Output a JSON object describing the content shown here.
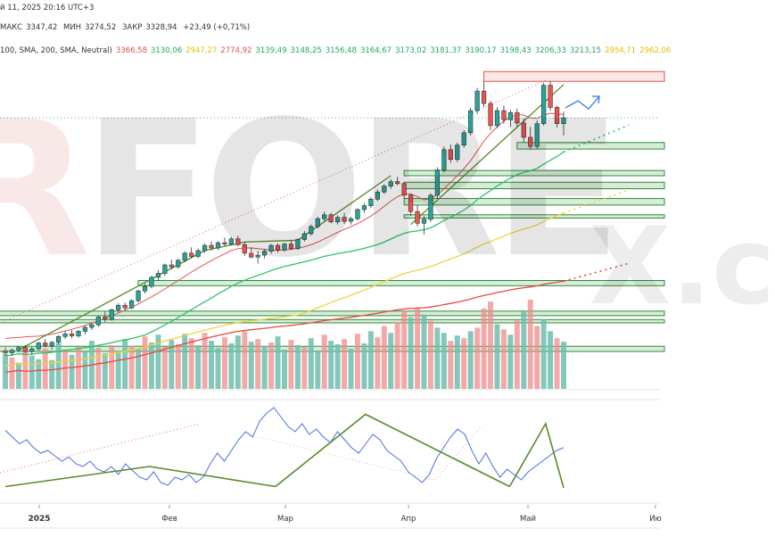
{
  "header": {
    "date_line": "й 11, 2025 20:16 UTC+3",
    "ohlc": {
      "high_label": "МАКС",
      "high": "3347,42",
      "low_label": "МИН",
      "low": "3274,52",
      "close_label": "ЗАКР",
      "close": "3328,94",
      "change": "+23,49 (+0,71%)"
    },
    "ma_label": "100, SMA, 200, SMA, Neutral)",
    "ma_values": [
      {
        "v": "3366,58",
        "color": "#d9534f"
      },
      {
        "v": "3130,06",
        "color": "#22a861"
      },
      {
        "v": "2947,27",
        "color": "#e0c000"
      },
      {
        "v": "2774,92",
        "color": "#d9534f"
      },
      {
        "v": "3139,49",
        "color": "#22a861"
      },
      {
        "v": "3148,25",
        "color": "#22a861"
      },
      {
        "v": "3156,48",
        "color": "#22a861"
      },
      {
        "v": "3164,67",
        "color": "#22a861"
      },
      {
        "v": "3173,02",
        "color": "#22a861"
      },
      {
        "v": "3181,37",
        "color": "#22a861"
      },
      {
        "v": "3190,17",
        "color": "#22a861"
      },
      {
        "v": "3198,43",
        "color": "#22a861"
      },
      {
        "v": "3206,33",
        "color": "#22a861"
      },
      {
        "v": "3213,15",
        "color": "#22a861"
      },
      {
        "v": "2954,71",
        "color": "#e0c000"
      },
      {
        "v": "2962,06",
        "color": "#e0c000"
      }
    ]
  },
  "watermark": {
    "brand_text": "RFORE",
    "tail_text": "X.c"
  },
  "chart_data": {
    "type": "candlestick",
    "x_ticks": [
      "2025",
      "Фев",
      "Мар",
      "Апр",
      "Май",
      "Ию"
    ],
    "ylim": [
      2580,
      3520
    ],
    "candles": [
      [
        2612,
        2622,
        2598,
        2606
      ],
      [
        2606,
        2618,
        2596,
        2614
      ],
      [
        2614,
        2628,
        2608,
        2622
      ],
      [
        2622,
        2630,
        2606,
        2610
      ],
      [
        2610,
        2624,
        2600,
        2618
      ],
      [
        2618,
        2640,
        2612,
        2636
      ],
      [
        2636,
        2648,
        2622,
        2628
      ],
      [
        2628,
        2642,
        2616,
        2638
      ],
      [
        2638,
        2660,
        2632,
        2656
      ],
      [
        2656,
        2672,
        2648,
        2664
      ],
      [
        2664,
        2676,
        2650,
        2658
      ],
      [
        2658,
        2676,
        2652,
        2672
      ],
      [
        2672,
        2690,
        2662,
        2684
      ],
      [
        2684,
        2698,
        2676,
        2692
      ],
      [
        2692,
        2720,
        2686,
        2716
      ],
      [
        2716,
        2732,
        2700,
        2710
      ],
      [
        2710,
        2742,
        2704,
        2738
      ],
      [
        2738,
        2758,
        2730,
        2752
      ],
      [
        2752,
        2760,
        2736,
        2744
      ],
      [
        2744,
        2770,
        2740,
        2766
      ],
      [
        2766,
        2800,
        2760,
        2796
      ],
      [
        2796,
        2818,
        2788,
        2810
      ],
      [
        2810,
        2842,
        2804,
        2838
      ],
      [
        2838,
        2860,
        2828,
        2850
      ],
      [
        2850,
        2880,
        2842,
        2876
      ],
      [
        2876,
        2892,
        2862,
        2870
      ],
      [
        2870,
        2896,
        2864,
        2890
      ],
      [
        2890,
        2918,
        2884,
        2912
      ],
      [
        2912,
        2930,
        2896,
        2902
      ],
      [
        2902,
        2926,
        2896,
        2920
      ],
      [
        2920,
        2942,
        2912,
        2936
      ],
      [
        2936,
        2948,
        2920,
        2928
      ],
      [
        2928,
        2950,
        2922,
        2944
      ],
      [
        2944,
        2960,
        2934,
        2940
      ],
      [
        2940,
        2962,
        2936,
        2956
      ],
      [
        2956,
        2966,
        2934,
        2938
      ],
      [
        2938,
        2946,
        2904,
        2912
      ],
      [
        2912,
        2930,
        2896,
        2900
      ],
      [
        2900,
        2918,
        2880,
        2906
      ],
      [
        2906,
        2924,
        2896,
        2918
      ],
      [
        2918,
        2940,
        2910,
        2936
      ],
      [
        2936,
        2942,
        2914,
        2922
      ],
      [
        2922,
        2944,
        2916,
        2940
      ],
      [
        2940,
        2950,
        2922,
        2926
      ],
      [
        2926,
        2958,
        2922,
        2954
      ],
      [
        2954,
        2980,
        2948,
        2972
      ],
      [
        2972,
        3000,
        2966,
        2994
      ],
      [
        2994,
        3024,
        2988,
        3018
      ],
      [
        3018,
        3040,
        3010,
        3030
      ],
      [
        3030,
        3036,
        3004,
        3008
      ],
      [
        3008,
        3028,
        3000,
        3022
      ],
      [
        3022,
        3036,
        3002,
        3010
      ],
      [
        3010,
        3024,
        3000,
        3018
      ],
      [
        3018,
        3050,
        3012,
        3046
      ],
      [
        3046,
        3066,
        3036,
        3058
      ],
      [
        3058,
        3084,
        3050,
        3078
      ],
      [
        3078,
        3108,
        3072,
        3100
      ],
      [
        3100,
        3124,
        3094,
        3118
      ],
      [
        3118,
        3140,
        3110,
        3132
      ],
      [
        3132,
        3146,
        3120,
        3126
      ],
      [
        3126,
        3130,
        3080,
        3090
      ],
      [
        3090,
        3094,
        3026,
        3040
      ],
      [
        3040,
        3060,
        2994,
        3004
      ],
      [
        3004,
        3026,
        2970,
        3016
      ],
      [
        3016,
        3096,
        3008,
        3090
      ],
      [
        3090,
        3176,
        3080,
        3168
      ],
      [
        3168,
        3240,
        3160,
        3230
      ],
      [
        3230,
        3246,
        3190,
        3200
      ],
      [
        3200,
        3252,
        3192,
        3244
      ],
      [
        3244,
        3290,
        3236,
        3282
      ],
      [
        3282,
        3360,
        3274,
        3350
      ],
      [
        3350,
        3420,
        3340,
        3410
      ],
      [
        3410,
        3440,
        3360,
        3372
      ],
      [
        3372,
        3380,
        3290,
        3304
      ],
      [
        3304,
        3360,
        3296,
        3350
      ],
      [
        3350,
        3366,
        3310,
        3322
      ],
      [
        3322,
        3352,
        3300,
        3344
      ],
      [
        3344,
        3356,
        3300,
        3312
      ],
      [
        3312,
        3326,
        3254,
        3268
      ],
      [
        3268,
        3300,
        3230,
        3240
      ],
      [
        3240,
        3320,
        3232,
        3310
      ],
      [
        3310,
        3436,
        3304,
        3428
      ],
      [
        3428,
        3440,
        3350,
        3360
      ],
      [
        3360,
        3366,
        3298,
        3310
      ],
      [
        3310,
        3347,
        3274,
        3328
      ]
    ],
    "volumes": [
      [
        40,
        0
      ],
      [
        36,
        1
      ],
      [
        30,
        0
      ],
      [
        45,
        1
      ],
      [
        38,
        0
      ],
      [
        34,
        0
      ],
      [
        46,
        1
      ],
      [
        33,
        0
      ],
      [
        52,
        0
      ],
      [
        44,
        1
      ],
      [
        39,
        0
      ],
      [
        48,
        1
      ],
      [
        42,
        0
      ],
      [
        55,
        0
      ],
      [
        47,
        1
      ],
      [
        41,
        0
      ],
      [
        50,
        1
      ],
      [
        43,
        0
      ],
      [
        57,
        0
      ],
      [
        49,
        1
      ],
      [
        46,
        0
      ],
      [
        60,
        1
      ],
      [
        53,
        0
      ],
      [
        62,
        0
      ],
      [
        48,
        1
      ],
      [
        56,
        0
      ],
      [
        51,
        1
      ],
      [
        63,
        0
      ],
      [
        58,
        1
      ],
      [
        50,
        0
      ],
      [
        64,
        1
      ],
      [
        55,
        0
      ],
      [
        47,
        0
      ],
      [
        59,
        1
      ],
      [
        52,
        0
      ],
      [
        61,
        0
      ],
      [
        66,
        1
      ],
      [
        54,
        0
      ],
      [
        57,
        1
      ],
      [
        49,
        0
      ],
      [
        53,
        1
      ],
      [
        60,
        0
      ],
      [
        45,
        0
      ],
      [
        56,
        1
      ],
      [
        50,
        0
      ],
      [
        48,
        1
      ],
      [
        58,
        0
      ],
      [
        44,
        0
      ],
      [
        62,
        1
      ],
      [
        55,
        0
      ],
      [
        51,
        0
      ],
      [
        57,
        1
      ],
      [
        46,
        0
      ],
      [
        63,
        1
      ],
      [
        52,
        0
      ],
      [
        66,
        0
      ],
      [
        59,
        1
      ],
      [
        72,
        1
      ],
      [
        64,
        0
      ],
      [
        76,
        1
      ],
      [
        90,
        1
      ],
      [
        82,
        0
      ],
      [
        93,
        1
      ],
      [
        85,
        0
      ],
      [
        78,
        1
      ],
      [
        70,
        0
      ],
      [
        64,
        0
      ],
      [
        55,
        1
      ],
      [
        61,
        0
      ],
      [
        58,
        1
      ],
      [
        66,
        0
      ],
      [
        70,
        1
      ],
      [
        92,
        1
      ],
      [
        100,
        1
      ],
      [
        74,
        0
      ],
      [
        68,
        1
      ],
      [
        62,
        0
      ],
      [
        78,
        1
      ],
      [
        88,
        0
      ],
      [
        102,
        1
      ],
      [
        72,
        1
      ],
      [
        80,
        0
      ],
      [
        66,
        0
      ],
      [
        58,
        1
      ],
      [
        54,
        0
      ]
    ],
    "ma_fast": [
      2650,
      2652,
      2653,
      2655,
      2656,
      2657,
      2660,
      2663,
      2668,
      2673,
      2678,
      2684,
      2690,
      2697,
      2704,
      2712,
      2720,
      2728,
      2737,
      2746,
      2756,
      2767,
      2778,
      2790,
      2802,
      2815,
      2828,
      2841,
      2854,
      2866,
      2878,
      2889,
      2900,
      2910,
      2920,
      2926,
      2928,
      2928,
      2926,
      2924,
      2922,
      2921,
      2922,
      2924,
      2927,
      2932,
      2938,
      2946,
      2956,
      2966,
      2976,
      2985,
      2994,
      3003,
      3014,
      3026,
      3040,
      3056,
      3072,
      3086,
      3094,
      3094,
      3086,
      3076,
      3080,
      3092,
      3110,
      3130,
      3150,
      3172,
      3196,
      3226,
      3256,
      3280,
      3300,
      3318,
      3330,
      3338,
      3336,
      3328,
      3326,
      3336,
      3342,
      3340,
      3338
    ],
    "trendlines": [
      {
        "color": "#5a8a2a",
        "pts": [
          [
            2,
            2615
          ],
          [
            30,
            2920
          ],
          [
            36,
            2946
          ],
          [
            44,
            2952
          ],
          [
            58,
            3150
          ]
        ]
      },
      {
        "color": "#5a8a2a",
        "pts": [
          [
            61,
            3000
          ],
          [
            84,
            3430
          ]
        ]
      }
    ],
    "hzones": [
      {
        "y1": 3440,
        "y2": 3470,
        "x0": 72,
        "x1": 120,
        "kind": "red"
      },
      {
        "y1": 3232,
        "y2": 3252,
        "x0": 77,
        "x1": 120,
        "kind": "green"
      },
      {
        "y1": 3150,
        "y2": 3166,
        "x0": 60,
        "x1": 120,
        "kind": "green"
      },
      {
        "y1": 3110,
        "y2": 3130,
        "x0": 60,
        "x1": 120,
        "kind": "green"
      },
      {
        "y1": 3060,
        "y2": 3080,
        "x0": 60,
        "x1": 120,
        "kind": "green"
      },
      {
        "y1": 3020,
        "y2": 3030,
        "x0": 60,
        "x1": 120,
        "kind": "green"
      },
      {
        "y1": 2812,
        "y2": 2828,
        "x0": 20,
        "x1": 120,
        "kind": "green"
      },
      {
        "y1": 2720,
        "y2": 2734,
        "x0": -2,
        "x1": 120,
        "kind": "green"
      },
      {
        "y1": 2698,
        "y2": 2708,
        "x0": -2,
        "x1": 120,
        "kind": "green"
      },
      {
        "y1": 2610,
        "y2": 2626,
        "x0": -2,
        "x1": 120,
        "kind": "green"
      }
    ],
    "oscillator": [
      45,
      40,
      35,
      38,
      32,
      28,
      30,
      26,
      22,
      25,
      20,
      18,
      22,
      16,
      14,
      18,
      12,
      20,
      15,
      10,
      8,
      14,
      6,
      4,
      10,
      8,
      12,
      6,
      10,
      20,
      28,
      22,
      30,
      38,
      44,
      40,
      52,
      58,
      62,
      55,
      48,
      44,
      50,
      42,
      46,
      40,
      36,
      44,
      38,
      32,
      28,
      35,
      42,
      38,
      30,
      26,
      22,
      14,
      10,
      6,
      12,
      24,
      32,
      40,
      46,
      42,
      30,
      20,
      28,
      18,
      10,
      16,
      12,
      8,
      14,
      18,
      22,
      26,
      30,
      32
    ],
    "osc_lines": [
      {
        "color": "#5a8a2a",
        "pts": [
          [
            0,
            3
          ],
          [
            16,
            18
          ],
          [
            30,
            3
          ]
        ]
      },
      {
        "color": "#5a8a2a",
        "pts": [
          [
            30,
            3
          ],
          [
            40,
            57
          ],
          [
            56,
            3
          ]
        ]
      },
      {
        "color": "#5a8a2a",
        "pts": [
          [
            56,
            3
          ],
          [
            60,
            50
          ],
          [
            62,
            2
          ]
        ]
      }
    ]
  }
}
